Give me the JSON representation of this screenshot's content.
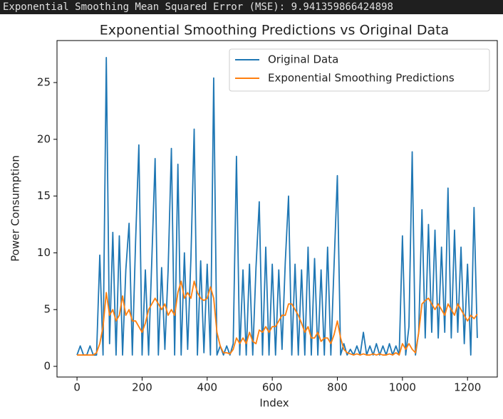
{
  "console_output": "Exponential Smoothing Mean Squared Error (MSE): 9.941359866424898",
  "chart_data": {
    "type": "line",
    "title": "Exponential Smoothing Predictions vs Original Data",
    "x_label": "Index",
    "y_label": "Power Consumption",
    "x": [
      0,
      10,
      20,
      30,
      40,
      50,
      60,
      70,
      80,
      90,
      100,
      110,
      120,
      130,
      140,
      150,
      160,
      170,
      180,
      190,
      200,
      210,
      220,
      230,
      240,
      250,
      260,
      270,
      280,
      290,
      300,
      310,
      320,
      330,
      340,
      350,
      360,
      370,
      380,
      390,
      400,
      410,
      420,
      430,
      440,
      450,
      460,
      470,
      480,
      490,
      500,
      510,
      520,
      530,
      540,
      550,
      560,
      570,
      580,
      590,
      600,
      610,
      620,
      630,
      640,
      650,
      660,
      670,
      680,
      690,
      700,
      710,
      720,
      730,
      740,
      750,
      760,
      770,
      780,
      790,
      800,
      810,
      820,
      830,
      840,
      850,
      860,
      870,
      880,
      890,
      900,
      910,
      920,
      930,
      940,
      950,
      960,
      970,
      980,
      990,
      1000,
      1010,
      1020,
      1030,
      1040,
      1050,
      1060,
      1070,
      1080,
      1090,
      1100,
      1110,
      1120,
      1130,
      1140,
      1150,
      1160,
      1170,
      1180,
      1190,
      1200,
      1210,
      1220,
      1230
    ],
    "series": [
      {
        "name": "Original Data",
        "color": "#1f77b4",
        "values": [
          1,
          1.8,
          1,
          1,
          1.8,
          1,
          1,
          9.8,
          1,
          27.2,
          2,
          11.8,
          1,
          11.5,
          1,
          8.5,
          12.6,
          1,
          11,
          19.5,
          1,
          8.5,
          1,
          9.5,
          18.3,
          1,
          8.7,
          1.5,
          8.5,
          19.2,
          1,
          17.8,
          1,
          10,
          1.5,
          9.5,
          20.9,
          1,
          9.3,
          1.2,
          9,
          1,
          25.4,
          1,
          1.8,
          1,
          1.8,
          1,
          2,
          18.5,
          1,
          8.5,
          1,
          9,
          1,
          8.7,
          14.5,
          1,
          10.5,
          1,
          9,
          1,
          8.5,
          1.5,
          9.2,
          15,
          1,
          9,
          1,
          8.5,
          1,
          10.5,
          1,
          9.5,
          1,
          8.5,
          1,
          10.5,
          1,
          9,
          16.8,
          1,
          2,
          1,
          1.5,
          1,
          1.8,
          1,
          3,
          1,
          1.8,
          1,
          2,
          1,
          1.8,
          1,
          2,
          1,
          1.8,
          1,
          11.5,
          1,
          3.5,
          18.9,
          1,
          3,
          13.8,
          2.5,
          12.5,
          3,
          12,
          2.5,
          10.5,
          3,
          15.7,
          2.5,
          12,
          3,
          10.5,
          2,
          9,
          1,
          14,
          2.5
        ]
      },
      {
        "name": "Exponential Smoothing Predictions",
        "color": "#ff7f0e",
        "values": [
          1,
          1,
          1,
          1,
          1,
          1,
          1.2,
          2,
          3.5,
          6.5,
          4.5,
          5,
          4,
          4.5,
          6.2,
          4.5,
          5,
          4,
          4,
          3.5,
          3,
          3.8,
          5,
          5.5,
          6,
          5.5,
          5,
          5.5,
          4.5,
          5,
          4.5,
          6.5,
          7.5,
          6,
          6.5,
          6,
          7.5,
          6.5,
          6,
          5.8,
          6,
          7,
          6,
          3,
          1.8,
          1.2,
          1.2,
          1.1,
          1.5,
          2.5,
          2,
          2.5,
          2,
          3,
          2.2,
          2,
          3.2,
          3,
          3.5,
          3,
          3.5,
          3.5,
          4,
          4.5,
          4.5,
          5.5,
          5.5,
          5,
          4.5,
          3.8,
          3,
          3.5,
          2.5,
          2.5,
          3,
          2.2,
          2.5,
          2.5,
          2,
          2.8,
          4,
          2.5,
          1.5,
          1.2,
          1.1,
          1,
          1.1,
          1,
          1.1,
          1,
          1,
          1.1,
          1,
          1.1,
          1,
          1,
          1.1,
          1,
          1.2,
          1,
          2,
          1.5,
          2,
          1.5,
          1.2,
          3,
          5.5,
          5.8,
          6,
          5.5,
          5,
          5.5,
          5,
          4.5,
          5.5,
          5,
          4.5,
          5.5,
          5,
          4.5,
          4,
          4.5,
          4.2,
          4.6
        ]
      }
    ],
    "xlim": [
      -61.5,
      1291.5
    ],
    "ylim": [
      -0.94,
      28.7
    ],
    "xticks": [
      0,
      200,
      400,
      600,
      800,
      1000,
      1200
    ],
    "yticks": [
      0,
      5,
      10,
      15,
      20,
      25
    ],
    "grid": false,
    "legend": "upper right"
  }
}
